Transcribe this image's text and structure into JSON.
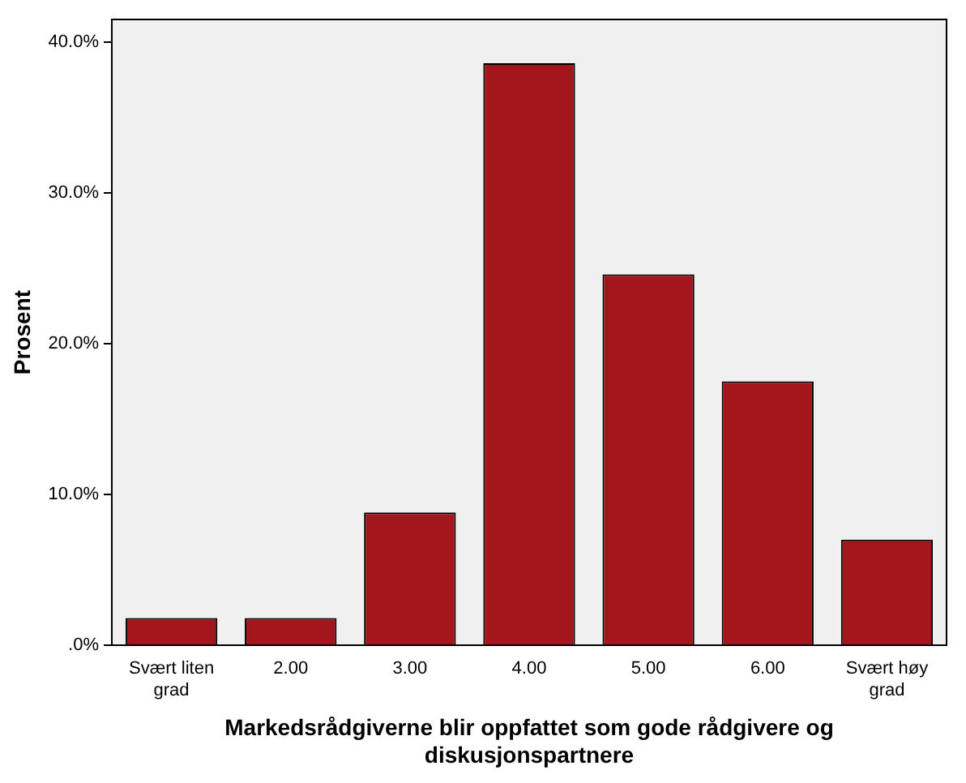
{
  "chart_data": {
    "type": "bar",
    "xlabel": "Markedsrådgiverne blir oppfattet som gode rådgivere og diskusjonspartnere",
    "ylabel": "Prosent",
    "categories": [
      "Svært liten grad",
      "2.00",
      "3.00",
      "4.00",
      "5.00",
      "6.00",
      "Svært høy grad"
    ],
    "values": [
      1.8,
      1.8,
      8.8,
      38.6,
      24.6,
      17.5,
      7.0
    ],
    "color": "#a3171c",
    "ylim": [
      0,
      41.5
    ],
    "yticks": [
      {
        "value": 0,
        "label": ".0%"
      },
      {
        "value": 10,
        "label": "10.0%"
      },
      {
        "value": 20,
        "label": "20.0%"
      },
      {
        "value": 30,
        "label": "30.0%"
      },
      {
        "value": 40,
        "label": "40.0%"
      }
    ],
    "grid": false,
    "legend": false
  }
}
